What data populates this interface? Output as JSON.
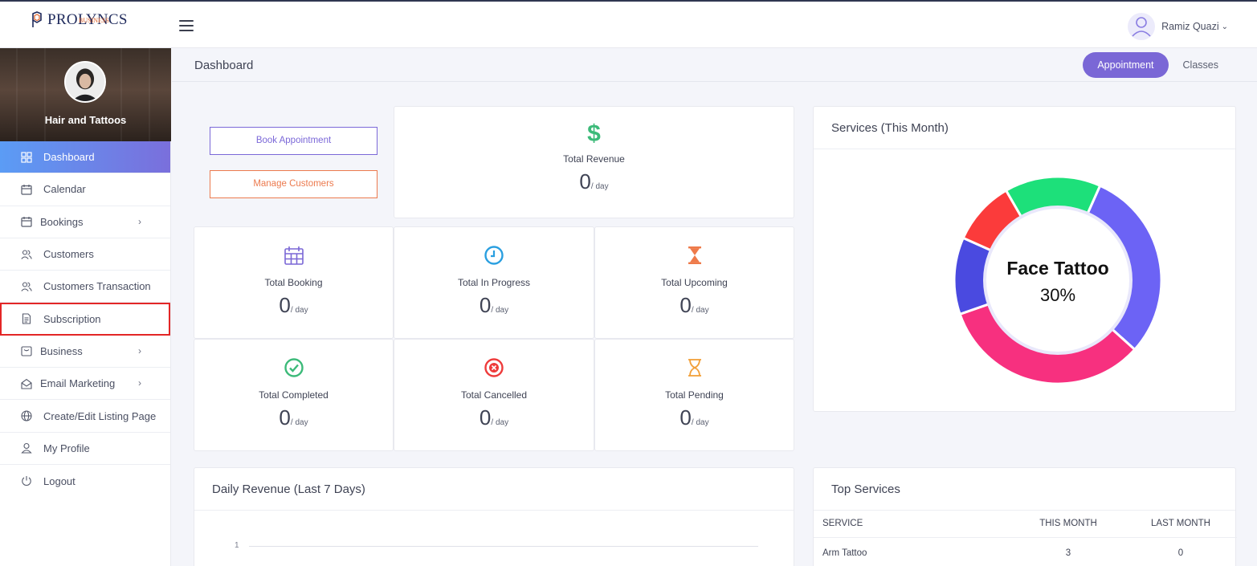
{
  "brand": {
    "name": "PROLYNCS",
    "sub": "BUSINESS"
  },
  "user": {
    "name": "Ramiz Quazi"
  },
  "sidebar": {
    "business_name": "Hair and Tattoos",
    "items": [
      {
        "label": "Dashboard",
        "icon": "grid-icon"
      },
      {
        "label": "Calendar",
        "icon": "calendar-icon"
      },
      {
        "label": "Bookings",
        "icon": "calendar-icon"
      },
      {
        "label": "Customers",
        "icon": "users-icon"
      },
      {
        "label": "Customers Transaction",
        "icon": "users-icon"
      },
      {
        "label": "Subscription",
        "icon": "document-icon"
      },
      {
        "label": "Business",
        "icon": "briefcase-icon"
      },
      {
        "label": "Email Marketing",
        "icon": "envelope-icon"
      },
      {
        "label": "Create/Edit Listing Page",
        "icon": "globe-icon"
      },
      {
        "label": "My Profile",
        "icon": "user-icon"
      },
      {
        "label": "Logout",
        "icon": "power-icon"
      }
    ]
  },
  "header": {
    "title": "Dashboard",
    "tabs": [
      {
        "label": "Appointment"
      },
      {
        "label": "Classes"
      }
    ]
  },
  "actions": {
    "book": "Book Appointment",
    "manage": "Manage Customers"
  },
  "stats": {
    "revenue": {
      "label": "Total Revenue",
      "value": "0",
      "unit": "/ day"
    },
    "booking": {
      "label": "Total Booking",
      "value": "0",
      "unit": "/ day"
    },
    "in_progress": {
      "label": "Total In Progress",
      "value": "0",
      "unit": "/ day"
    },
    "upcoming": {
      "label": "Total Upcoming",
      "value": "0",
      "unit": "/ day"
    },
    "completed": {
      "label": "Total Completed",
      "value": "0",
      "unit": "/ day"
    },
    "cancelled": {
      "label": "Total Cancelled",
      "value": "0",
      "unit": "/ day"
    },
    "pending": {
      "label": "Total Pending",
      "value": "0",
      "unit": "/ day"
    }
  },
  "services_chart": {
    "title": "Services (This Month)",
    "center_label": "Face Tattoo",
    "center_value": "30%"
  },
  "colors": {
    "accent": "#7a67d6",
    "donut": [
      "#6c63f5",
      "#f7307f",
      "#4a4ae0",
      "#fb3b3b",
      "#1de07a"
    ]
  },
  "chart_data": [
    {
      "type": "pie",
      "title": "Services (This Month)",
      "series": [
        {
          "name": "",
          "values": [
            30,
            33,
            12,
            10,
            15
          ]
        }
      ]
    },
    {
      "type": "line",
      "title": "Daily Revenue (Last 7 Days)",
      "y_ticks": [
        "1"
      ],
      "ylim": [
        0,
        1
      ]
    }
  ],
  "daily_revenue": {
    "title": "Daily Revenue (Last 7 Days)",
    "tick": "1"
  },
  "top_services": {
    "title": "Top Services",
    "columns": [
      "SERVICE",
      "THIS MONTH",
      "LAST MONTH"
    ],
    "rows": [
      [
        "Arm Tattoo",
        "3",
        "0"
      ]
    ]
  }
}
